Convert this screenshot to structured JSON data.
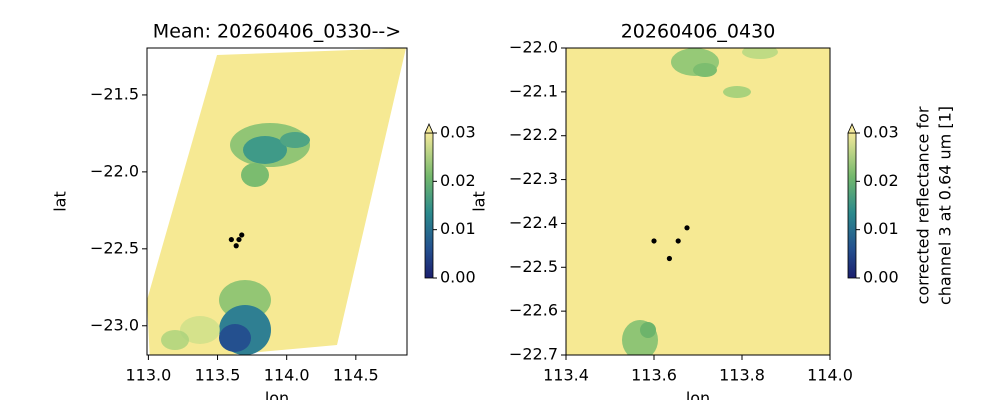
{
  "chart_data": [
    {
      "type": "scatter",
      "title": "Mean: 20260406_0330-->",
      "x_label": "lon",
      "y_label": "lat",
      "x": [
        113.6,
        113.655,
        113.675,
        113.635
      ],
      "y": [
        -22.44,
        -22.44,
        -22.41,
        -22.48
      ],
      "color": "#000000",
      "xlim": [
        112.99,
        114.87
      ],
      "ylim": [
        -23.19,
        -21.195
      ],
      "xticks": [
        {
          "value": 113.0,
          "label": "113.0"
        },
        {
          "value": 113.5,
          "label": "113.5"
        },
        {
          "value": 114.0,
          "label": "114.0"
        },
        {
          "value": 114.5,
          "label": "114.5"
        }
      ],
      "yticks": [
        {
          "value": -21.5,
          "label": "−21.5"
        },
        {
          "value": -22.0,
          "label": "−22.0"
        },
        {
          "value": -22.5,
          "label": "−22.5"
        },
        {
          "value": -23.0,
          "label": "−23.0"
        }
      ],
      "colorbar": {
        "lim": [
          0,
          0.03
        ],
        "ticks": [
          {
            "value": 0,
            "label": "0.00"
          },
          {
            "value": 0.01,
            "label": "0.01"
          },
          {
            "value": 0.02,
            "label": "0.02"
          },
          {
            "value": 0.03,
            "label": "0.03"
          }
        ]
      }
    },
    {
      "type": "scatter",
      "title": "20260406_0430",
      "x_label": "lon",
      "y_label": "lat",
      "x": [
        113.6,
        113.655,
        113.675,
        113.635
      ],
      "y": [
        -22.44,
        -22.44,
        -22.41,
        -22.48
      ],
      "color": "#000000",
      "xlim": [
        113.4,
        114.0
      ],
      "ylim": [
        -22.7,
        -22.0
      ],
      "xticks": [
        {
          "value": 113.4,
          "label": "113.4"
        },
        {
          "value": 113.6,
          "label": "113.6"
        },
        {
          "value": 113.8,
          "label": "113.8"
        },
        {
          "value": 114.0,
          "label": "114.0"
        }
      ],
      "yticks": [
        {
          "value": -22.0,
          "label": "−22.0"
        },
        {
          "value": -22.1,
          "label": "−22.1"
        },
        {
          "value": -22.2,
          "label": "−22.2"
        },
        {
          "value": -22.3,
          "label": "−22.3"
        },
        {
          "value": -22.4,
          "label": "−22.4"
        },
        {
          "value": -22.5,
          "label": "−22.5"
        },
        {
          "value": -22.6,
          "label": "−22.6"
        },
        {
          "value": -22.7,
          "label": "−22.7"
        }
      ],
      "colorbar": {
        "lim": [
          0,
          0.03
        ],
        "ticks": [
          {
            "value": 0,
            "label": "0.00"
          },
          {
            "value": 0.01,
            "label": "0.01"
          },
          {
            "value": 0.02,
            "label": "0.02"
          },
          {
            "value": 0.03,
            "label": "0.03"
          }
        ],
        "label_lines": [
          "corrected reflectance for",
          "channel 3 at 0.64 um [1]"
        ]
      }
    }
  ]
}
